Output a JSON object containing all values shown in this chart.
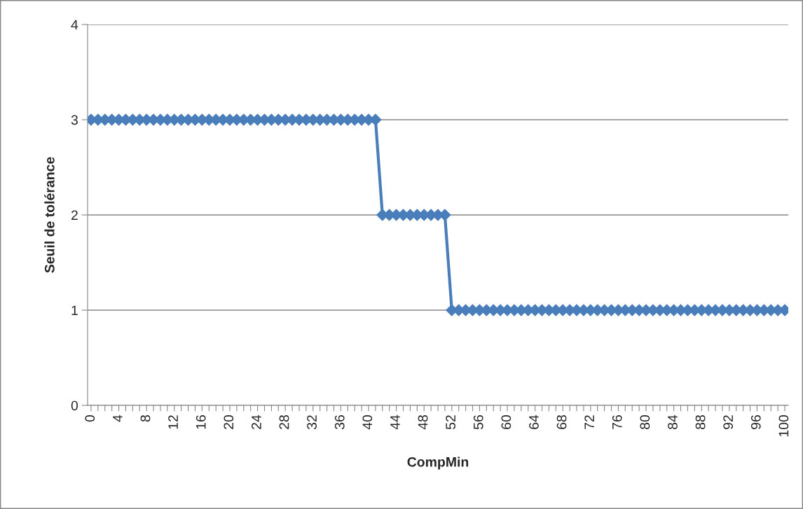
{
  "chart_data": {
    "type": "line",
    "xlabel": "CompMin",
    "ylabel": "Seuil de tolérance",
    "categories": [
      "0",
      null,
      null,
      null,
      "4",
      null,
      null,
      null,
      "8",
      null,
      null,
      null,
      "12",
      null,
      null,
      null,
      "16",
      null,
      null,
      null,
      "20",
      null,
      null,
      null,
      "24",
      null,
      null,
      null,
      "28",
      null,
      null,
      null,
      "32",
      null,
      null,
      null,
      "36",
      null,
      null,
      null,
      "40",
      null,
      null,
      null,
      "44",
      null,
      null,
      null,
      "48",
      null,
      null,
      null,
      "52",
      null,
      null,
      null,
      "56",
      null,
      null,
      null,
      "60",
      null,
      null,
      null,
      "64",
      null,
      null,
      null,
      "68",
      null,
      null,
      null,
      "72",
      null,
      null,
      null,
      "76",
      null,
      null,
      null,
      "80",
      null,
      null,
      null,
      "84",
      null,
      null,
      null,
      "88",
      null,
      null,
      null,
      "92",
      null,
      null,
      null,
      "96",
      null,
      null,
      null,
      "100"
    ],
    "series": [
      {
        "color": "#4a7ebb",
        "values": [
          3,
          3,
          3,
          3,
          3,
          3,
          3,
          3,
          3,
          3,
          3,
          3,
          3,
          3,
          3,
          3,
          3,
          3,
          3,
          3,
          3,
          3,
          3,
          3,
          3,
          3,
          3,
          3,
          3,
          3,
          3,
          3,
          3,
          3,
          3,
          3,
          3,
          3,
          3,
          3,
          3,
          3,
          2,
          2,
          2,
          2,
          2,
          2,
          2,
          2,
          2,
          2,
          1,
          1,
          1,
          1,
          1,
          1,
          1,
          1,
          1,
          1,
          1,
          1,
          1,
          1,
          1,
          1,
          1,
          1,
          1,
          1,
          1,
          1,
          1,
          1,
          1,
          1,
          1,
          1,
          1,
          1,
          1,
          1,
          1,
          1,
          1,
          1,
          1,
          1,
          1,
          1,
          1,
          1,
          1,
          1,
          1,
          1,
          1,
          1,
          1
        ]
      }
    ],
    "ylim": [
      0,
      4
    ],
    "yticks": [
      0,
      1,
      2,
      3,
      4
    ],
    "grid": "y",
    "legend": false,
    "marker": "diamond",
    "line_style": "solid"
  }
}
